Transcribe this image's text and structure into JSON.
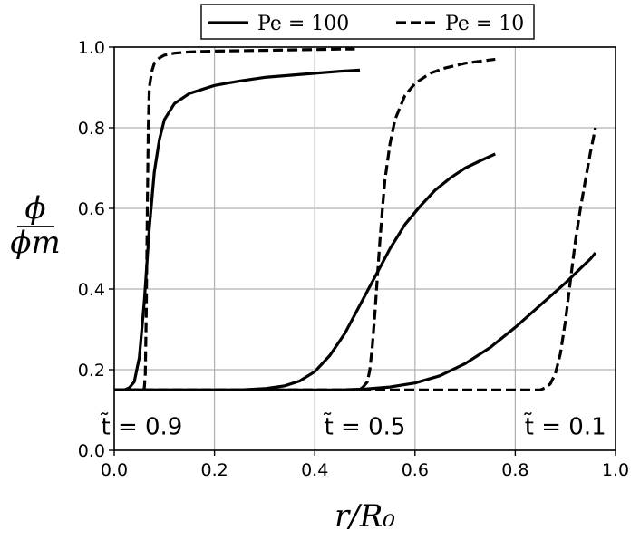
{
  "chart_data": {
    "type": "line",
    "title": "",
    "xlabel": "r/R₀",
    "ylabel_num": "ϕ",
    "ylabel_den": "ϕm",
    "xlim": [
      0.0,
      1.0
    ],
    "ylim": [
      0.0,
      1.0
    ],
    "x_ticks": [
      "0.0",
      "0.2",
      "0.4",
      "0.6",
      "0.8",
      "1.0"
    ],
    "y_ticks": [
      "0.0",
      "0.2",
      "0.4",
      "0.6",
      "0.8",
      "1.0"
    ],
    "grid": true,
    "legend": {
      "placement": "top-center",
      "entries": [
        {
          "label": "Pe = 100",
          "style": "solid"
        },
        {
          "label": "Pe = 10",
          "style": "dashed"
        }
      ]
    },
    "annotations": [
      {
        "text": "t̃ = 0.9",
        "x": 0.055,
        "y": 0.06
      },
      {
        "text": "t̃ = 0.5",
        "x": 0.5,
        "y": 0.06
      },
      {
        "text": "t̃ = 0.1",
        "x": 0.9,
        "y": 0.06
      }
    ],
    "series": [
      {
        "style": "solid",
        "x": [
          0.0,
          0.02,
          0.03,
          0.04,
          0.05,
          0.06,
          0.07,
          0.08,
          0.09,
          0.1,
          0.12,
          0.15,
          0.2,
          0.25,
          0.3,
          0.35,
          0.4,
          0.45,
          0.49
        ],
        "y": [
          0.15,
          0.15,
          0.155,
          0.17,
          0.23,
          0.37,
          0.55,
          0.69,
          0.77,
          0.82,
          0.86,
          0.885,
          0.905,
          0.916,
          0.925,
          0.93,
          0.935,
          0.94,
          0.943
        ]
      },
      {
        "style": "dashed",
        "x": [
          0.0,
          0.058,
          0.06,
          0.062,
          0.064,
          0.066,
          0.068,
          0.07,
          0.075,
          0.08,
          0.09,
          0.1,
          0.12,
          0.15,
          0.2,
          0.25,
          0.3,
          0.35,
          0.4,
          0.45,
          0.48
        ],
        "y": [
          0.15,
          0.15,
          0.155,
          0.19,
          0.35,
          0.6,
          0.8,
          0.9,
          0.94,
          0.96,
          0.973,
          0.98,
          0.985,
          0.988,
          0.99,
          0.991,
          0.992,
          0.993,
          0.994,
          0.995,
          0.995
        ]
      },
      {
        "style": "solid",
        "x": [
          0.0,
          0.25,
          0.3,
          0.34,
          0.37,
          0.4,
          0.43,
          0.46,
          0.49,
          0.52,
          0.55,
          0.58,
          0.61,
          0.64,
          0.67,
          0.7,
          0.73,
          0.76
        ],
        "y": [
          0.15,
          0.15,
          0.153,
          0.16,
          0.172,
          0.195,
          0.235,
          0.29,
          0.36,
          0.43,
          0.5,
          0.56,
          0.605,
          0.645,
          0.675,
          0.7,
          0.718,
          0.735
        ]
      },
      {
        "style": "dashed",
        "x": [
          0.0,
          0.48,
          0.495,
          0.505,
          0.51,
          0.515,
          0.52,
          0.525,
          0.53,
          0.535,
          0.54,
          0.55,
          0.56,
          0.58,
          0.6,
          0.63,
          0.66,
          0.7,
          0.76
        ],
        "y": [
          0.15,
          0.15,
          0.155,
          0.17,
          0.2,
          0.26,
          0.34,
          0.43,
          0.52,
          0.6,
          0.67,
          0.76,
          0.82,
          0.88,
          0.91,
          0.935,
          0.948,
          0.96,
          0.97
        ]
      },
      {
        "style": "solid",
        "x": [
          0.0,
          0.45,
          0.5,
          0.55,
          0.6,
          0.65,
          0.7,
          0.75,
          0.8,
          0.85,
          0.9,
          0.95,
          0.96
        ],
        "y": [
          0.15,
          0.15,
          0.152,
          0.157,
          0.167,
          0.185,
          0.215,
          0.255,
          0.305,
          0.36,
          0.415,
          0.475,
          0.49
        ]
      },
      {
        "style": "dashed",
        "x": [
          0.0,
          0.85,
          0.86,
          0.87,
          0.88,
          0.89,
          0.9,
          0.91,
          0.92,
          0.93,
          0.94,
          0.95,
          0.96
        ],
        "y": [
          0.15,
          0.15,
          0.155,
          0.165,
          0.19,
          0.24,
          0.32,
          0.42,
          0.52,
          0.6,
          0.67,
          0.74,
          0.8
        ]
      }
    ]
  }
}
